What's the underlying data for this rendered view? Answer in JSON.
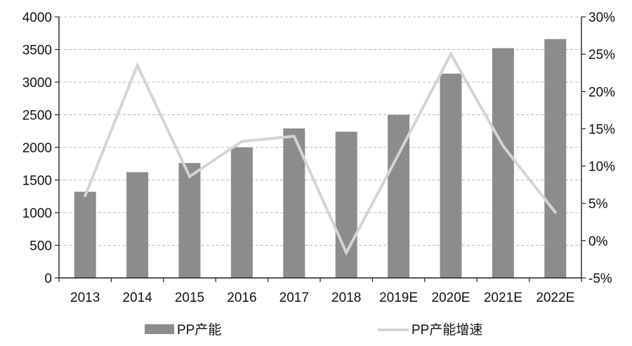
{
  "chart_data": {
    "type": "bar",
    "categories": [
      "2013",
      "2014",
      "2015",
      "2016",
      "2017",
      "2018",
      "2019E",
      "2020E",
      "2021E",
      "2022E"
    ],
    "series": [
      {
        "name": "PP产能",
        "type": "bar",
        "axis": "left",
        "color": "#8c8c8c",
        "values": [
          1320,
          1620,
          1760,
          2000,
          2290,
          2240,
          2500,
          3130,
          3520,
          3660
        ]
      },
      {
        "name": "PP产能增速",
        "type": "line",
        "axis": "right",
        "color": "#d4d4d4",
        "values": [
          6.0,
          23.5,
          8.6,
          13.3,
          14.0,
          -1.6,
          11.6,
          25.0,
          12.7,
          3.8
        ]
      }
    ],
    "y_left": {
      "ylim": [
        0,
        4000
      ],
      "ticks": [
        0,
        500,
        1000,
        1500,
        2000,
        2500,
        3000,
        3500,
        4000
      ],
      "tick_labels": [
        "0",
        "500",
        "1000",
        "1500",
        "2000",
        "2500",
        "3000",
        "3500",
        "4000"
      ]
    },
    "y_right": {
      "ylim": [
        -5,
        30
      ],
      "ticks": [
        -5,
        0,
        5,
        10,
        15,
        20,
        25,
        30
      ],
      "tick_labels": [
        "-5%",
        "0%",
        "5%",
        "10%",
        "15%",
        "20%",
        "25%",
        "30%"
      ]
    },
    "grid": true,
    "legend_position": "bottom",
    "title": "",
    "xlabel": "",
    "ylabel": ""
  }
}
